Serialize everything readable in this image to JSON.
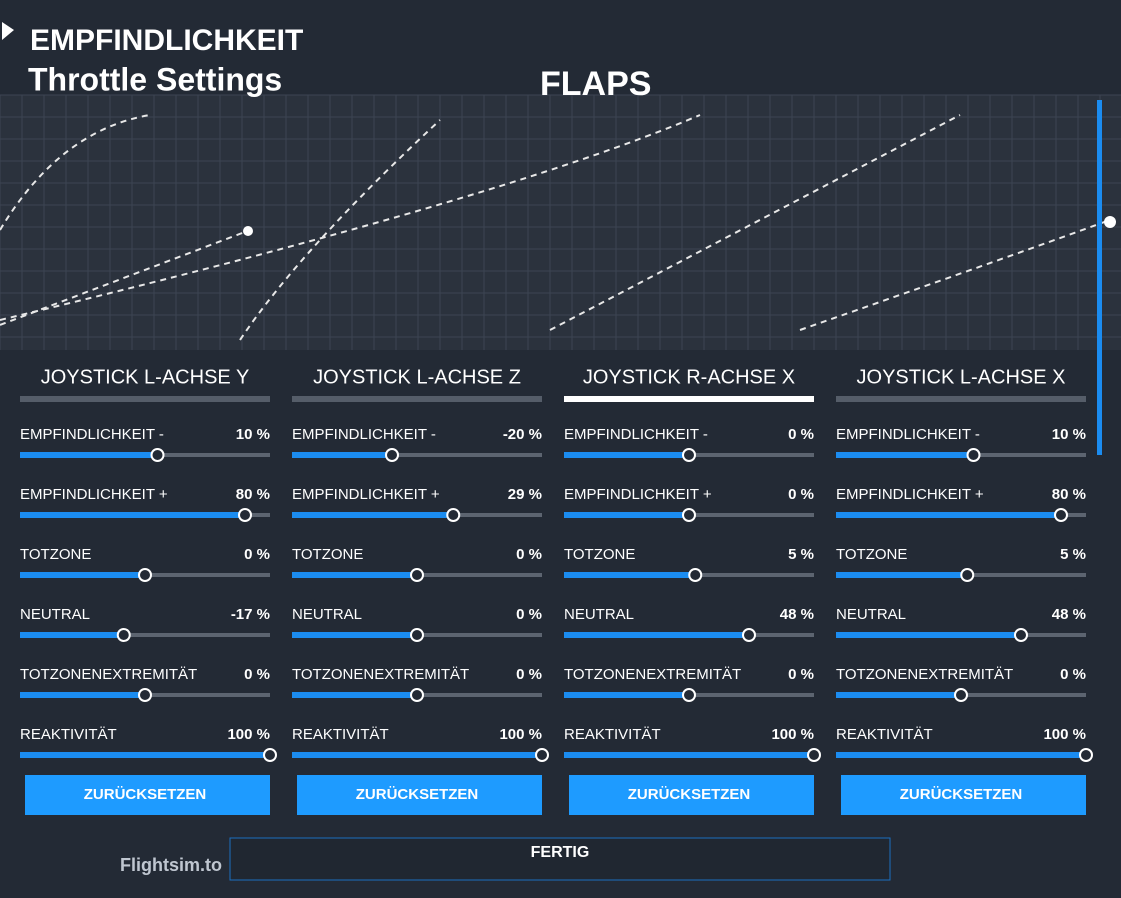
{
  "header": {
    "section": "EMPFINDLICHKEIT",
    "title": "Throttle Settings",
    "subtitle": "FLAPS"
  },
  "panels": [
    {
      "tab": "JOYSTICK L-ACHSE Y",
      "settings": [
        {
          "label": "EMPFINDLICHKEIT -",
          "value": "10 %"
        },
        {
          "label": "EMPFINDLICHKEIT +",
          "value": "80 %"
        },
        {
          "label": "TOTZONE",
          "value": "0 %"
        },
        {
          "label": "NEUTRAL",
          "value": "-17 %"
        },
        {
          "label": "TOTZONENEXTREMITÄT",
          "value": "0 %"
        },
        {
          "label": "REAKTIVITÄT",
          "value": "100 %"
        }
      ],
      "reset": "ZURÜCKSETZEN"
    },
    {
      "tab": "JOYSTICK L-ACHSE Z",
      "settings": [
        {
          "label": "EMPFINDLICHKEIT -",
          "value": "-20 %"
        },
        {
          "label": "EMPFINDLICHKEIT +",
          "value": "29 %"
        },
        {
          "label": "TOTZONE",
          "value": "0 %"
        },
        {
          "label": "NEUTRAL",
          "value": "0 %"
        },
        {
          "label": "TOTZONENEXTREMITÄT",
          "value": "0 %"
        },
        {
          "label": "REAKTIVITÄT",
          "value": "100 %"
        }
      ],
      "reset": "ZURÜCKSETZEN"
    },
    {
      "tab": "JOYSTICK R-ACHSE X",
      "settings": [
        {
          "label": "EMPFINDLICHKEIT -",
          "value": "0 %"
        },
        {
          "label": "EMPFINDLICHKEIT +",
          "value": "0 %"
        },
        {
          "label": "TOTZONE",
          "value": "5 %"
        },
        {
          "label": "NEUTRAL",
          "value": "48 %"
        },
        {
          "label": "TOTZONENEXTREMITÄT",
          "value": "0 %"
        },
        {
          "label": "REAKTIVITÄT",
          "value": "100 %"
        }
      ],
      "reset": "ZURÜCKSETZEN"
    },
    {
      "tab": "JOYSTICK L-ACHSE X",
      "settings": [
        {
          "label": "EMPFINDLICHKEIT -",
          "value": "10 %"
        },
        {
          "label": "EMPFINDLICHKEIT +",
          "value": "80 %"
        },
        {
          "label": "TOTZONE",
          "value": "5 %"
        },
        {
          "label": "NEUTRAL",
          "value": "48 %"
        },
        {
          "label": "TOTZONENEXTREMITÄT",
          "value": "0 %"
        },
        {
          "label": "REAKTIVITÄT",
          "value": "100 %"
        }
      ],
      "reset": "ZURÜCKSETZEN"
    }
  ],
  "footer": {
    "done": "FERTIG",
    "watermark": "Flightsim.to"
  }
}
